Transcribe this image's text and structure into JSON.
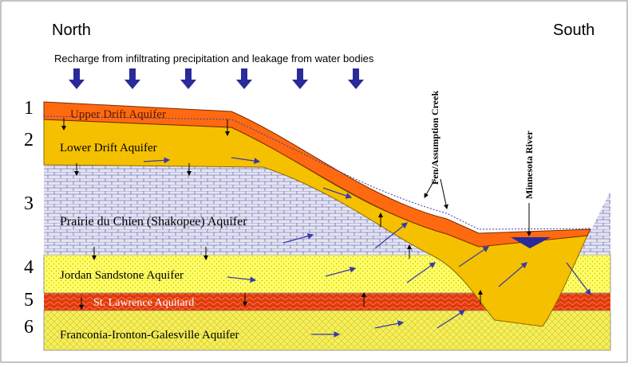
{
  "header": {
    "left": "North",
    "right": "South",
    "recharge": "Recharge from infiltrating precipitation and leakage from water bodies"
  },
  "layers": [
    {
      "number": "1",
      "name": "Upper Drift Aquifer"
    },
    {
      "number": "2",
      "name": "Lower Drift Aquifer"
    },
    {
      "number": "3",
      "name": "Prairie du Chien (Shakopee) Aquifer"
    },
    {
      "number": "4",
      "name": "Jordan Sandstone Aquifer"
    },
    {
      "number": "5",
      "name": "St. Lawrence Aquitard"
    },
    {
      "number": "6",
      "name": "Franconia-Ironton-Galesville Aquifer"
    }
  ],
  "features": [
    {
      "label": "Fen/Assumption Creek"
    },
    {
      "label": "Minnesota River"
    }
  ]
}
